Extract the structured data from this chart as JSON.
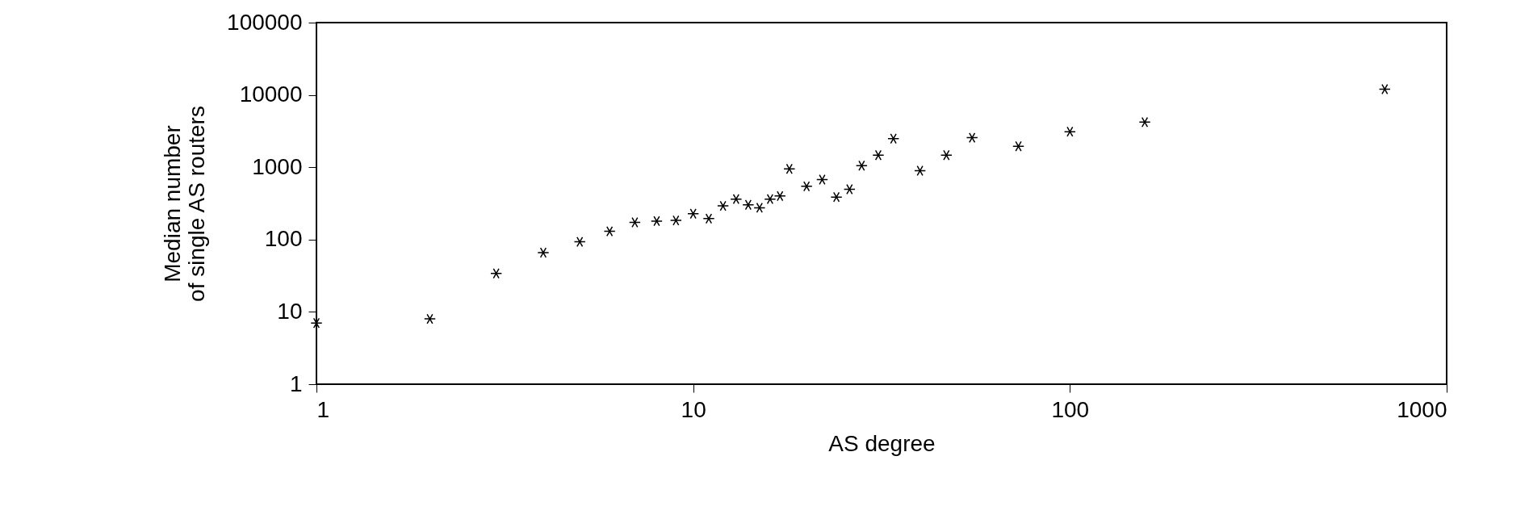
{
  "chart_data": {
    "type": "scatter",
    "xlabel": "AS degree",
    "ylabel": "Median number\nof single AS routers",
    "x": [
      1,
      2,
      3,
      4,
      5,
      6,
      7,
      8,
      9,
      10,
      11,
      12,
      13,
      14,
      15,
      16,
      17,
      18,
      20,
      22,
      24,
      26,
      28,
      31,
      34,
      40,
      47,
      55,
      73,
      100,
      158,
      685
    ],
    "series": [
      {
        "color": "#000000",
        "values": [
          7,
          8,
          34,
          66,
          93,
          130,
          173,
          180,
          184,
          228,
          195,
          292,
          363,
          302,
          275,
          363,
          400,
          950,
          545,
          675,
          387,
          496,
          1050,
          1470,
          2490,
          895,
          1470,
          2560,
          1950,
          3100,
          4200,
          12000
        ]
      }
    ],
    "log": "xy",
    "xlim": [
      1,
      1000
    ],
    "xticks": [
      1,
      10,
      100,
      1000
    ],
    "ylim": [
      1,
      100000
    ],
    "yticks": [
      1,
      10,
      100,
      1000,
      10000,
      100000
    ],
    "marker": "cross",
    "grid": false
  }
}
